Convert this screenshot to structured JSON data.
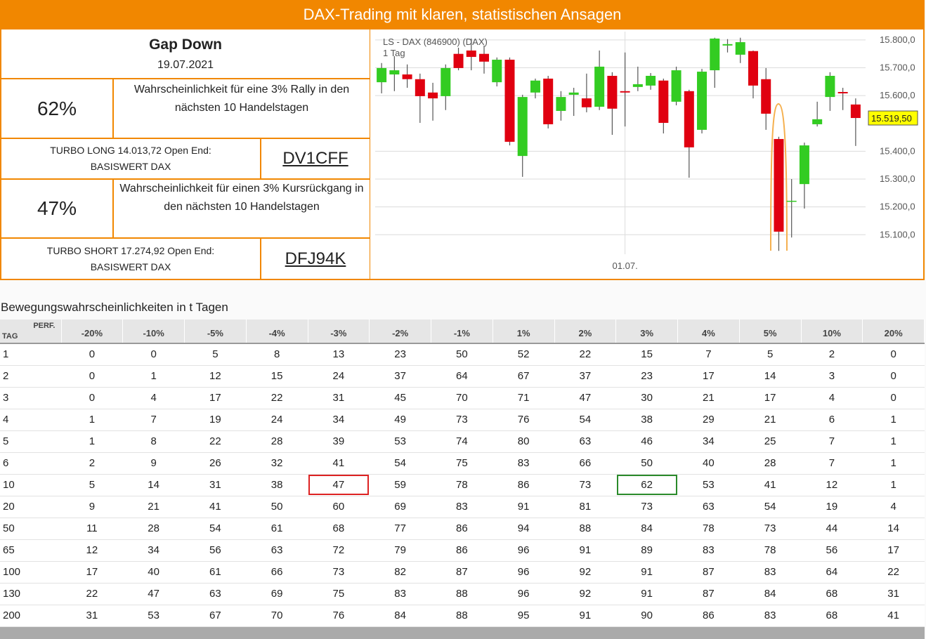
{
  "header": {
    "title": "DAX-Trading mit klaren, statistischen Ansagen"
  },
  "signal": {
    "title": "Gap Down",
    "date": "19.07.2021",
    "long": {
      "probability": "62%",
      "text": "Wahrscheinlichkeit für eine 3% Rally in den nächsten 10 Handelstagen",
      "product": "TURBO LONG 14.013,72 Open End:",
      "underlying": "BASISWERT DAX",
      "wkn": "DV1CFF"
    },
    "short": {
      "probability": "47%",
      "text": "Wahrscheinlichkeit für einen 3% Kursrückgang in den nächsten 10 Handelstagen",
      "product": "TURBO SHORT 17.274,92 Open End:",
      "underlying": "BASISWERT DAX",
      "wkn": "DFJ94K"
    }
  },
  "chart_data": {
    "type": "candlestick",
    "title": "LS - DAX (846900) (DAX)",
    "subtitle": "1 Tag",
    "categories": [
      null,
      null,
      null,
      null,
      null,
      null,
      null,
      null,
      null,
      null,
      null,
      null,
      null,
      null,
      null,
      null,
      null,
      null,
      null,
      "01.07.",
      null,
      null,
      null,
      null,
      null,
      null,
      null,
      null,
      null,
      null,
      null,
      null,
      null,
      null,
      null,
      null,
      null,
      null
    ],
    "open": [
      15648,
      15676,
      15676,
      15659,
      15611,
      15598,
      15750,
      15762,
      15750,
      15648,
      15729,
      15383,
      15611,
      15661,
      15545,
      15603,
      15590,
      15560,
      15671,
      15616,
      15631,
      15636,
      15654,
      15578,
      15616,
      15477,
      15691,
      15780,
      15747,
      15760,
      15659,
      15444,
      15220,
      15282,
      15497,
      15595,
      15613,
      15568
    ],
    "high": [
      15717,
      15742,
      15712,
      15679,
      15646,
      15712,
      15772,
      15805,
      15780,
      15737,
      15737,
      15603,
      15661,
      15671,
      15616,
      15628,
      15679,
      15762,
      15684,
      15755,
      15704,
      15681,
      15661,
      15704,
      15621,
      15696,
      15808,
      15803,
      15808,
      15762,
      15699,
      15452,
      15300,
      15431,
      15578,
      15684,
      15628,
      15590
    ],
    "low": [
      15608,
      15616,
      15628,
      15502,
      15510,
      15548,
      15691,
      15691,
      15679,
      15633,
      15421,
      15308,
      15590,
      15482,
      15510,
      15527,
      15540,
      15548,
      15459,
      15489,
      15616,
      15621,
      15464,
      15565,
      15305,
      15464,
      15628,
      15755,
      15717,
      15590,
      15477,
      15042,
      15090,
      15194,
      15489,
      15545,
      15548,
      15419
    ],
    "close": [
      15699,
      15691,
      15659,
      15598,
      15590,
      15699,
      15699,
      15739,
      15722,
      15729,
      15434,
      15595,
      15654,
      15497,
      15595,
      15611,
      15558,
      15704,
      15553,
      15611,
      15641,
      15671,
      15502,
      15691,
      15414,
      15686,
      15805,
      15785,
      15792,
      15636,
      15535,
      15111,
      15222,
      15421,
      15515,
      15671,
      15608,
      15519.5
    ],
    "up_color": "#33cc22",
    "down_color": "#e00010",
    "ylim": [
      15030,
      15830
    ],
    "yticks": [
      {
        "value": 15100,
        "label": "15.100,0"
      },
      {
        "value": 15200,
        "label": "15.200,0"
      },
      {
        "value": 15300,
        "label": "15.300,0"
      },
      {
        "value": 15400,
        "label": "15.400,0"
      },
      {
        "value": 15600,
        "label": "15.600,0"
      },
      {
        "value": 15700,
        "label": "15.700,0"
      },
      {
        "value": 15800,
        "label": "15.800,0"
      }
    ],
    "grid": true,
    "price_tag": {
      "value": 15519.5,
      "label": "15.519,50"
    }
  },
  "table": {
    "title": "Bewegungswahrscheinlichkeiten in t Tagen",
    "corner_row": "TAG",
    "corner_col": "PERF.",
    "columns": [
      "-20%",
      "-10%",
      "-5%",
      "-4%",
      "-3%",
      "-2%",
      "-1%",
      "1%",
      "2%",
      "3%",
      "4%",
      "5%",
      "10%",
      "20%"
    ],
    "rows": [
      [
        1,
        0,
        0,
        5,
        8,
        13,
        23,
        50,
        52,
        22,
        15,
        7,
        5,
        2,
        0
      ],
      [
        2,
        0,
        1,
        12,
        15,
        24,
        37,
        64,
        67,
        37,
        23,
        17,
        14,
        3,
        0
      ],
      [
        3,
        0,
        4,
        17,
        22,
        31,
        45,
        70,
        71,
        47,
        30,
        21,
        17,
        4,
        0
      ],
      [
        4,
        1,
        7,
        19,
        24,
        34,
        49,
        73,
        76,
        54,
        38,
        29,
        21,
        6,
        1
      ],
      [
        5,
        1,
        8,
        22,
        28,
        39,
        53,
        74,
        80,
        63,
        46,
        34,
        25,
        7,
        1
      ],
      [
        6,
        2,
        9,
        26,
        32,
        41,
        54,
        75,
        83,
        66,
        50,
        40,
        28,
        7,
        1
      ],
      [
        10,
        5,
        14,
        31,
        38,
        47,
        59,
        78,
        86,
        73,
        62,
        53,
        41,
        12,
        1
      ],
      [
        20,
        9,
        21,
        41,
        50,
        60,
        69,
        83,
        91,
        81,
        73,
        63,
        54,
        19,
        4
      ],
      [
        50,
        11,
        28,
        54,
        61,
        68,
        77,
        86,
        94,
        88,
        84,
        78,
        73,
        44,
        14
      ],
      [
        65,
        12,
        34,
        56,
        63,
        72,
        79,
        86,
        96,
        91,
        89,
        83,
        78,
        56,
        17
      ],
      [
        100,
        17,
        40,
        61,
        66,
        73,
        82,
        87,
        96,
        92,
        91,
        87,
        83,
        64,
        22
      ],
      [
        130,
        22,
        47,
        63,
        69,
        75,
        83,
        88,
        96,
        92,
        91,
        87,
        84,
        68,
        31
      ],
      [
        200,
        31,
        53,
        67,
        70,
        76,
        84,
        88,
        95,
        91,
        90,
        86,
        83,
        68,
        41
      ]
    ]
  }
}
